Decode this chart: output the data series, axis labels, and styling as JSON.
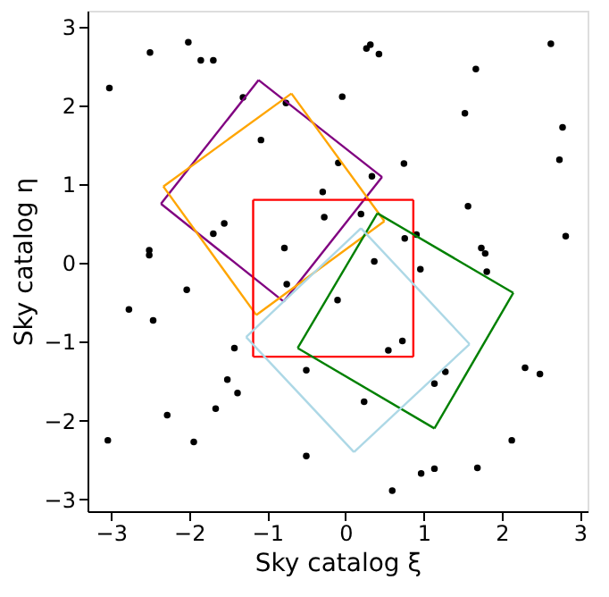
{
  "chart_data": {
    "type": "scatter",
    "xlabel": "Sky catalog ξ",
    "ylabel": "Sky catalog η",
    "xlim": [
      -3.3,
      3.1
    ],
    "ylim": [
      -3.15,
      3.2
    ],
    "xticks": [
      -3,
      -2,
      -1,
      0,
      1,
      2,
      3
    ],
    "yticks": [
      -3,
      -2,
      -1,
      0,
      1,
      2,
      3
    ],
    "grid": false,
    "marker": "circle",
    "series": [
      {
        "color": "#000000",
        "x": [
          -3.02,
          -2.5,
          -2.01,
          -1.85,
          -1.69,
          -1.31,
          -0.76,
          -1.08,
          -0.29,
          -0.27,
          -1.55,
          -1.69,
          -2.51,
          -2.51,
          -0.78,
          0.27,
          0.32,
          0.43,
          2.63,
          1.67,
          -0.04,
          1.53,
          2.78,
          2.74,
          -0.09,
          0.75,
          0.34,
          1.57,
          0.2,
          0.76,
          0.91,
          2.82,
          1.74,
          1.79,
          0.37,
          -2.03,
          -2.77,
          -2.46,
          -0.75,
          -1.42,
          -0.5,
          -1.51,
          -1.38,
          -1.66,
          -2.28,
          -3.04,
          -1.94,
          -0.5,
          1.81,
          0.96,
          -0.1,
          0.73,
          0.55,
          1.28,
          1.14,
          2.3,
          2.49,
          0.24,
          2.13,
          1.69,
          0.97,
          1.14,
          0.6
        ],
        "values": [
          2.22,
          2.67,
          2.8,
          2.57,
          2.57,
          2.1,
          2.03,
          1.56,
          0.9,
          0.58,
          0.5,
          0.37,
          0.16,
          0.1,
          0.19,
          2.72,
          2.77,
          2.65,
          2.78,
          2.46,
          2.11,
          1.9,
          1.72,
          1.31,
          1.27,
          1.26,
          1.1,
          0.72,
          0.62,
          0.31,
          0.36,
          0.34,
          0.19,
          0.12,
          0.02,
          -0.34,
          -0.59,
          -0.73,
          -0.27,
          -1.08,
          -1.36,
          -1.48,
          -1.65,
          -1.85,
          -1.93,
          -2.25,
          -2.27,
          -2.45,
          -0.11,
          -0.08,
          -0.47,
          -0.99,
          -1.11,
          -1.38,
          -1.53,
          -1.33,
          -1.41,
          -1.76,
          -2.25,
          -2.6,
          -2.67,
          -2.61,
          -2.89
        ]
      },
      {
        "type": "line",
        "color": "#800080",
        "marker": "none",
        "x": [
          -1.11,
          0.47
        ],
        "values": [
          2.32,
          1.09
        ]
      },
      {
        "type": "line",
        "color": "#800080",
        "marker": "none",
        "x": [
          0.47,
          -0.79
        ],
        "values": [
          1.09,
          -0.49
        ]
      },
      {
        "type": "line",
        "color": "#800080",
        "marker": "none",
        "x": [
          -0.79,
          -2.36
        ],
        "values": [
          -0.49,
          0.75
        ]
      },
      {
        "type": "line",
        "color": "#800080",
        "marker": "none",
        "x": [
          -2.36,
          -1.11
        ],
        "values": [
          0.75,
          2.32
        ]
      },
      {
        "type": "line",
        "color": "#ffa500",
        "marker": "none",
        "x": [
          -0.69,
          0.5
        ],
        "values": [
          2.15,
          0.53
        ]
      },
      {
        "type": "line",
        "color": "#ffa500",
        "marker": "none",
        "x": [
          0.5,
          -1.14
        ],
        "values": [
          0.53,
          -0.66
        ]
      },
      {
        "type": "line",
        "color": "#ffa500",
        "marker": "none",
        "x": [
          -1.14,
          -2.33
        ],
        "values": [
          -0.66,
          0.97
        ]
      },
      {
        "type": "line",
        "color": "#ffa500",
        "marker": "none",
        "x": [
          -2.33,
          -0.69
        ],
        "values": [
          0.97,
          2.15
        ]
      },
      {
        "type": "line",
        "color": "#ff0000",
        "marker": "none",
        "x": [
          -1.18,
          0.87
        ],
        "values": [
          0.8,
          0.8
        ]
      },
      {
        "type": "line",
        "color": "#ff0000",
        "marker": "none",
        "x": [
          0.87,
          0.87
        ],
        "values": [
          0.8,
          -1.19
        ]
      },
      {
        "type": "line",
        "color": "#ff0000",
        "marker": "none",
        "x": [
          0.87,
          -1.18
        ],
        "values": [
          -1.19,
          -1.19
        ]
      },
      {
        "type": "line",
        "color": "#ff0000",
        "marker": "none",
        "x": [
          -1.18,
          -1.18
        ],
        "values": [
          -1.19,
          0.8
        ]
      },
      {
        "type": "line",
        "color": "#008000",
        "marker": "none",
        "x": [
          0.41,
          2.15
        ],
        "values": [
          0.63,
          -0.38
        ]
      },
      {
        "type": "line",
        "color": "#008000",
        "marker": "none",
        "x": [
          2.15,
          1.14
        ],
        "values": [
          -0.38,
          -2.1
        ]
      },
      {
        "type": "line",
        "color": "#008000",
        "marker": "none",
        "x": [
          1.14,
          -0.61
        ],
        "values": [
          -2.1,
          -1.08
        ]
      },
      {
        "type": "line",
        "color": "#008000",
        "marker": "none",
        "x": [
          -0.61,
          0.41
        ],
        "values": [
          -1.08,
          0.63
        ]
      },
      {
        "type": "line",
        "color": "#add8e6",
        "marker": "none",
        "x": [
          0.2,
          1.59
        ],
        "values": [
          0.44,
          -1.03
        ]
      },
      {
        "type": "line",
        "color": "#add8e6",
        "marker": "none",
        "x": [
          1.59,
          0.11
        ],
        "values": [
          -1.03,
          -2.4
        ]
      },
      {
        "type": "line",
        "color": "#add8e6",
        "marker": "none",
        "x": [
          0.11,
          -1.27
        ],
        "values": [
          -2.4,
          -0.94
        ]
      },
      {
        "type": "line",
        "color": "#add8e6",
        "marker": "none",
        "x": [
          -1.27,
          0.2
        ],
        "values": [
          -0.94,
          0.44
        ]
      }
    ]
  }
}
